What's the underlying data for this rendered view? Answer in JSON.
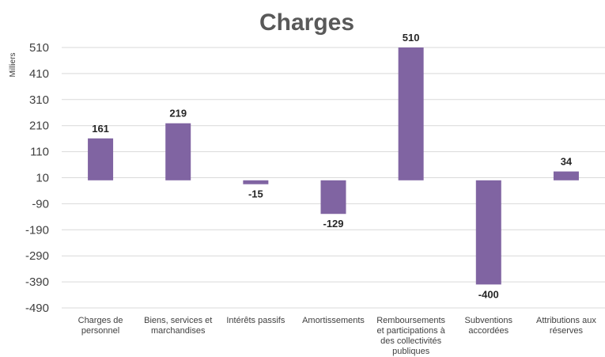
{
  "chart_data": {
    "type": "bar",
    "title": "Charges",
    "ylabel": "Milliers",
    "xlabel": "",
    "categories": [
      [
        "Charges de",
        "personnel"
      ],
      [
        "Biens, services et",
        "marchandises"
      ],
      [
        "Intérêts passifs"
      ],
      [
        "Amortissements"
      ],
      [
        "Remboursements",
        "et participations à",
        "des collectivités",
        "publiques"
      ],
      [
        "Subventions",
        "accordées"
      ],
      [
        "Attributions aux",
        "réserves"
      ]
    ],
    "values": [
      161,
      219,
      -15,
      -129,
      510,
      -400,
      34
    ],
    "data_labels": [
      "161",
      "219",
      "-15",
      "-129",
      "510",
      "-400",
      "34"
    ],
    "yticks": [
      510,
      410,
      310,
      210,
      110,
      10,
      -90,
      -190,
      -290,
      -390,
      -490
    ],
    "ytick_labels": [
      "510",
      "410",
      "310",
      "210",
      "110",
      "10",
      "-90",
      "-190",
      "-290",
      "-390",
      "-490"
    ],
    "ylim": [
      -490,
      510
    ],
    "baseline": 0,
    "grid": true,
    "legend": "none",
    "bar_color": "#8064a2"
  }
}
